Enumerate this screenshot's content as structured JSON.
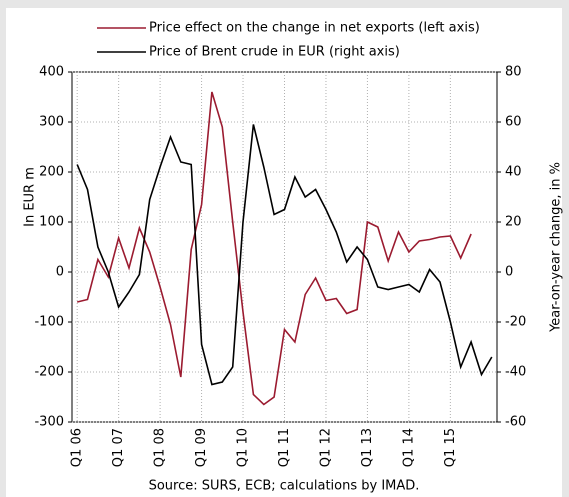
{
  "chart_data": {
    "type": "line",
    "categories": [
      "Q1 06",
      null,
      null,
      null,
      "Q1 07",
      null,
      null,
      null,
      "Q1 08",
      null,
      null,
      null,
      "Q1 09",
      null,
      null,
      null,
      "Q1 10",
      null,
      null,
      null,
      "Q1 11",
      null,
      null,
      null,
      "Q1 12",
      null,
      null,
      null,
      "Q1 13",
      null,
      null,
      null,
      "Q1 14",
      null,
      null,
      null,
      "Q1 15",
      null,
      null,
      null,
      null
    ],
    "series": [
      {
        "name": "Price effect on the change in net exports (left axis)",
        "color": "#9b1b30",
        "values": [
          -60,
          -55,
          25,
          -10,
          68,
          8,
          88,
          40,
          -30,
          -105,
          -210,
          45,
          135,
          360,
          290,
          100,
          -80,
          -245,
          -265,
          -250,
          -115,
          -140,
          -45,
          -12,
          -57,
          -53,
          -83,
          -75,
          100,
          90,
          22,
          80,
          40,
          62,
          65,
          70,
          72,
          28,
          76,
          null,
          null
        ]
      },
      {
        "name": "Price of Brent crude in EUR (right axis)",
        "color": "#000000",
        "axis": "y2",
        "values": [
          43,
          33,
          10,
          0,
          -14,
          -8,
          -1,
          29,
          42,
          54,
          44,
          43,
          -29,
          -45,
          -44,
          -38,
          20,
          59,
          42,
          23,
          25,
          38,
          30,
          33,
          25,
          16,
          4,
          10,
          5,
          -6,
          -7,
          -6,
          -5,
          -8,
          1,
          -4,
          -20,
          -38,
          -28,
          -41,
          -34
        ]
      }
    ],
    "ylabel": "In EUR m",
    "y2label": "Year-on-year change, in %",
    "ylim": [
      -300,
      400
    ],
    "yticks": [
      -300,
      -200,
      -100,
      0,
      100,
      200,
      300,
      400
    ],
    "y2lim": [
      -60,
      80
    ],
    "y2ticks": [
      -60,
      -40,
      -20,
      0,
      20,
      40,
      60,
      80
    ],
    "grid": true,
    "legend": "top",
    "source": "Source: SURS, ECB; calculations by IMAD."
  }
}
